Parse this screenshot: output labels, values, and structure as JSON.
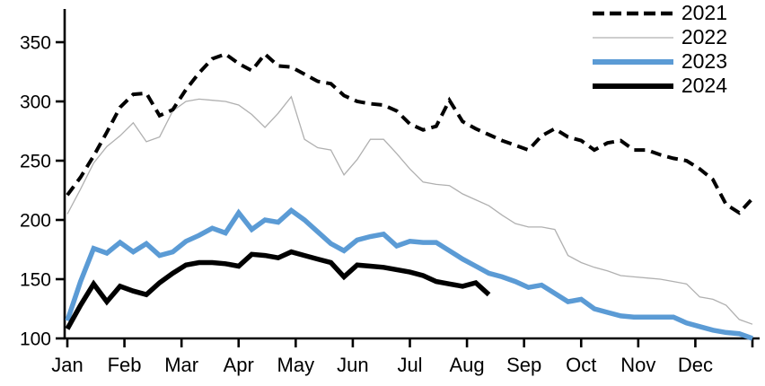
{
  "chart_data": {
    "type": "line",
    "title": "",
    "xlabel": "",
    "ylabel": "",
    "x_axis": {
      "tick_labels": [
        "Jan",
        "Feb",
        "Mar",
        "Apr",
        "May",
        "Jun",
        "Jul",
        "Aug",
        "Sep",
        "Oct",
        "Nov",
        "Dec"
      ],
      "resolution": "weekly",
      "weeks_per_year": 52,
      "end_tick": true
    },
    "y_axis": {
      "ticks": [
        100,
        150,
        200,
        250,
        300,
        350
      ],
      "range": [
        100,
        378
      ]
    },
    "grid": false,
    "legend_position": "top-right",
    "colors": {
      "black": "#000000",
      "gray": "#b0b0b0",
      "blue": "#5B9BD5"
    },
    "series": [
      {
        "name": "2021",
        "color": "#000000",
        "style": "dashed",
        "width": 4,
        "values": [
          221,
          236,
          254,
          274,
          295,
          306,
          307,
          288,
          293,
          310,
          324,
          336,
          340,
          332,
          326,
          340,
          330,
          329,
          323,
          317,
          315,
          305,
          300,
          298,
          297,
          292,
          281,
          276,
          279,
          301,
          283,
          277,
          272,
          267,
          263,
          259,
          271,
          277,
          270,
          267,
          259,
          265,
          267,
          259,
          259,
          255,
          252,
          250,
          243,
          234,
          213,
          206,
          218
        ]
      },
      {
        "name": "2022",
        "color": "#b0b0b0",
        "style": "solid",
        "width": 1.3,
        "values": [
          205,
          226,
          248,
          262,
          271,
          282,
          266,
          270,
          292,
          300,
          302,
          301,
          300,
          297,
          289,
          278,
          290,
          304,
          268,
          261,
          259,
          238,
          251,
          268,
          268,
          256,
          243,
          232,
          230,
          229,
          222,
          217,
          212,
          204,
          197,
          194,
          194,
          192,
          170,
          164,
          160,
          157,
          153,
          152,
          151,
          150,
          148,
          146,
          135,
          133,
          128,
          116,
          112
        ]
      },
      {
        "name": "2023",
        "color": "#5B9BD5",
        "style": "solid",
        "width": 5.5,
        "values": [
          115,
          148,
          176,
          172,
          181,
          173,
          180,
          170,
          173,
          182,
          187,
          193,
          189,
          206,
          192,
          200,
          198,
          208,
          200,
          190,
          180,
          174,
          183,
          186,
          188,
          178,
          182,
          181,
          181,
          174,
          167,
          161,
          155,
          152,
          148,
          143,
          145,
          138,
          131,
          133,
          125,
          122,
          119,
          118,
          118,
          118,
          118,
          113,
          110,
          107,
          105,
          104,
          100
        ]
      },
      {
        "name": "2024",
        "color": "#000000",
        "style": "solid",
        "width": 5.5,
        "values": [
          108,
          128,
          146,
          131,
          144,
          140,
          137,
          147,
          155,
          162,
          164,
          164,
          163,
          161,
          171,
          170,
          168,
          173,
          170,
          167,
          164,
          152,
          162,
          161,
          160,
          158,
          156,
          153,
          148,
          146,
          144,
          147,
          137
        ]
      }
    ]
  }
}
